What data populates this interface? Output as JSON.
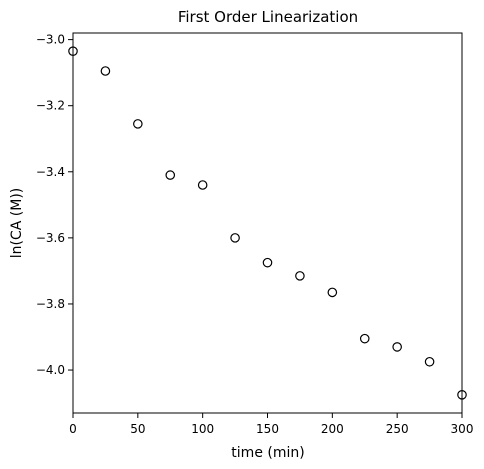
{
  "chart_data": {
    "type": "scatter",
    "title": "First Order Linearization",
    "xlabel": "time (min)",
    "ylabel": "ln(CA (M))",
    "xlim": [
      0,
      300
    ],
    "ylim": [
      -4.13,
      -2.98
    ],
    "xticks": [
      0,
      50,
      100,
      150,
      200,
      250,
      300
    ],
    "xtick_labels": [
      "0",
      "50",
      "100",
      "150",
      "200",
      "250",
      "300"
    ],
    "yticks": [
      -4.0,
      -3.8,
      -3.6,
      -3.4,
      -3.2,
      -3.0
    ],
    "ytick_labels": [
      "−4.0",
      "−3.8",
      "−3.6",
      "−3.4",
      "−3.2",
      "−3.0"
    ],
    "grid": false,
    "legend": false,
    "marker": "hollow-circle",
    "marker_edge_color": "#000000",
    "series": [
      {
        "x": [
          0,
          25,
          50,
          75,
          100,
          125,
          150,
          175,
          200,
          225,
          250,
          275,
          300
        ],
        "y": [
          -3.035,
          -3.095,
          -3.255,
          -3.41,
          -3.44,
          -3.6,
          -3.675,
          -3.715,
          -3.765,
          -3.905,
          -3.93,
          -3.975,
          -4.075
        ]
      }
    ]
  }
}
